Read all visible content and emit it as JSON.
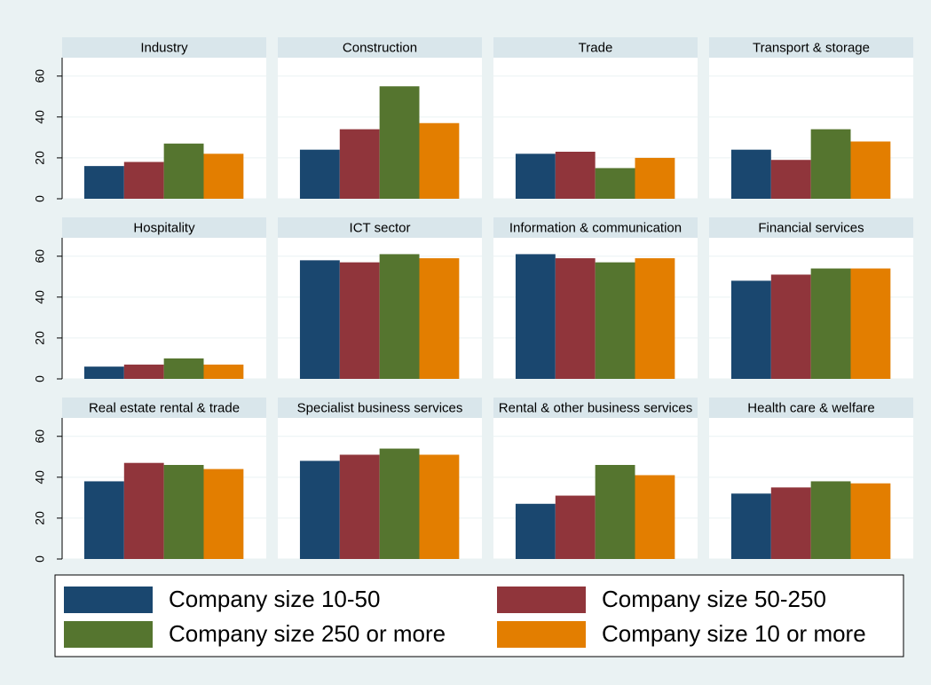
{
  "chart_data": {
    "type": "bar",
    "categories": [
      "Industry",
      "Construction",
      "Trade",
      "Transport & storage",
      "Hospitality",
      "ICT sector",
      "Information & communication",
      "Financial services",
      "Real estate rental & trade",
      "Specialist business services",
      "Rental & other business services",
      "Health care & welfare"
    ],
    "series": [
      {
        "name": "Company size 10-50",
        "color": "#1a476f",
        "values": [
          16,
          24,
          22,
          24,
          6,
          58,
          61,
          48,
          38,
          48,
          27,
          32
        ]
      },
      {
        "name": "Company size 50-250",
        "color": "#90353b",
        "values": [
          18,
          34,
          23,
          19,
          7,
          57,
          59,
          51,
          47,
          51,
          31,
          35
        ]
      },
      {
        "name": "Company size 250 or more",
        "color": "#55752f",
        "values": [
          27,
          55,
          15,
          34,
          10,
          61,
          57,
          54,
          46,
          54,
          46,
          38
        ]
      },
      {
        "name": "Company size 10 or more",
        "color": "#e37e00",
        "values": [
          22,
          37,
          20,
          28,
          7,
          59,
          59,
          54,
          44,
          51,
          41,
          37
        ]
      }
    ],
    "ylim": [
      0,
      69
    ],
    "yticks": [
      0,
      20,
      40,
      60
    ],
    "grid": true
  }
}
